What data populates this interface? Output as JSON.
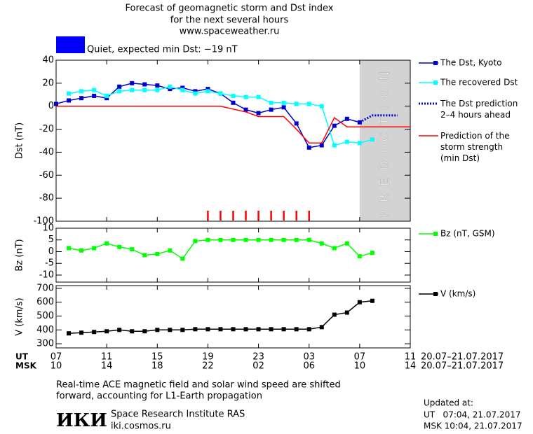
{
  "title_lines": [
    "Forecast of geomagnetic storm and Dst index",
    "for the next several hours",
    "www.spaceweather.ru"
  ],
  "status": {
    "color": "#0000ff",
    "text": "Quiet, expected min Dst: −19 nT"
  },
  "chart_data": [
    {
      "type": "line",
      "ylabel": "Dst (nT)",
      "xlim": [
        0,
        28
      ],
      "ylim": [
        -100,
        40
      ],
      "yticks": [
        40,
        20,
        0,
        -20,
        -40,
        -60,
        -80,
        -100
      ],
      "prediction_band": {
        "x": [
          24,
          28
        ],
        "label": "PREDICTION",
        "color": "#d3d3d3"
      },
      "storm_marks": {
        "color": "#ff0000",
        "x": [
          12,
          13,
          14,
          15,
          16,
          17,
          18,
          19,
          20
        ]
      },
      "series": [
        {
          "name": "The Dst, Kyoto",
          "color": "#0000cc",
          "marker": "square",
          "style": "solid",
          "x": [
            0,
            1,
            2,
            3,
            4,
            5,
            6,
            7,
            8,
            9,
            10,
            11,
            12,
            13,
            14,
            15,
            16,
            17,
            18,
            19,
            20,
            21,
            22,
            23,
            24
          ],
          "values": [
            2,
            5,
            7,
            9,
            7,
            17,
            20,
            19,
            18,
            15,
            16,
            13,
            15,
            11,
            3,
            -3,
            -6,
            -3,
            -1,
            -15,
            -36,
            -34,
            -17,
            -11,
            -14
          ]
        },
        {
          "name": "The recovered Dst",
          "color": "#00ffff",
          "marker": "square",
          "style": "solid",
          "x": [
            1,
            2,
            3,
            4,
            5,
            6,
            7,
            8,
            9,
            10,
            11,
            12,
            13,
            14,
            15,
            16,
            17,
            18,
            19,
            20,
            21,
            22,
            23,
            24,
            25
          ],
          "values": [
            11,
            13,
            14,
            9,
            13,
            14,
            14,
            14,
            17,
            14,
            11,
            13,
            11,
            9,
            8,
            8,
            3,
            3,
            2,
            2,
            0,
            -34,
            -31,
            -32,
            -29
          ]
        },
        {
          "name": "The Dst prediction\n2–4 hours ahead",
          "color": "#0000cc",
          "marker": "none",
          "style": "dotted",
          "x": [
            24,
            25,
            26,
            27
          ],
          "values": [
            -14,
            -8,
            -8,
            -8
          ]
        },
        {
          "name": "Prediction of the\nstorm strength\n(min Dst)",
          "color": "#ff0000",
          "marker": "none",
          "style": "solid",
          "x": [
            0,
            13,
            15,
            16,
            18,
            19,
            20,
            21,
            22,
            23,
            28
          ],
          "values": [
            0,
            0,
            -5,
            -9,
            -9,
            -20,
            -32,
            -32,
            -10,
            -18,
            -18
          ]
        }
      ]
    },
    {
      "type": "line",
      "ylabel": "Bz (nT)",
      "xlim": [
        0,
        28
      ],
      "ylim": [
        -13,
        10
      ],
      "yticks": [
        10,
        5,
        0,
        -5,
        -10
      ],
      "series": [
        {
          "name": "Bz (nT, GSM)",
          "color": "#00ff00",
          "marker": "square",
          "style": "solid",
          "x": [
            1,
            2,
            3,
            4,
            5,
            6,
            7,
            8,
            9,
            10,
            11,
            12,
            13,
            14,
            15,
            16,
            17,
            18,
            19,
            20,
            21,
            22,
            23,
            24,
            25
          ],
          "values": [
            1.5,
            0.5,
            1.5,
            3.5,
            2,
            1,
            -1.5,
            -1,
            0.5,
            -3,
            4.5,
            5,
            5,
            5,
            5,
            5,
            5,
            5,
            5,
            5,
            3.5,
            1.5,
            3.5,
            -2,
            -0.5
          ]
        }
      ]
    },
    {
      "type": "line",
      "ylabel": "V (km/s)",
      "xlim": [
        0,
        28
      ],
      "ylim": [
        270,
        720
      ],
      "yticks": [
        700,
        600,
        500,
        400,
        300
      ],
      "series": [
        {
          "name": "V (km/s)",
          "color": "#000000",
          "marker": "square",
          "style": "solid",
          "x": [
            1,
            2,
            3,
            4,
            5,
            6,
            7,
            8,
            9,
            10,
            11,
            12,
            13,
            14,
            15,
            16,
            17,
            18,
            19,
            20,
            21,
            22,
            23,
            24,
            25
          ],
          "values": [
            375,
            380,
            385,
            390,
            400,
            390,
            390,
            400,
            400,
            400,
            405,
            405,
            405,
            405,
            405,
            405,
            405,
            405,
            405,
            405,
            420,
            510,
            525,
            600,
            610
          ]
        }
      ]
    }
  ],
  "x_axis": {
    "ut_label": "UT",
    "msk_label": "MSK",
    "ut_ticks": [
      {
        "value": 0,
        "label": "07"
      },
      {
        "value": 4,
        "label": "11"
      },
      {
        "value": 8,
        "label": "15"
      },
      {
        "value": 12,
        "label": "19"
      },
      {
        "value": 16,
        "label": "23"
      },
      {
        "value": 20,
        "label": "03"
      },
      {
        "value": 24,
        "label": "07"
      },
      {
        "value": 28,
        "label": "11"
      }
    ],
    "msk_ticks": [
      {
        "value": 0,
        "label": "10"
      },
      {
        "value": 4,
        "label": "14"
      },
      {
        "value": 8,
        "label": "18"
      },
      {
        "value": 12,
        "label": "22"
      },
      {
        "value": 16,
        "label": "02"
      },
      {
        "value": 20,
        "label": "06"
      },
      {
        "value": 24,
        "label": "10"
      },
      {
        "value": 28,
        "label": "14"
      }
    ],
    "ut_range": "20.07–21.07.2017",
    "msk_range": "20.07–21.07.2017"
  },
  "notes": [
    "Real-time ACE magnetic field and solar wind speed are shifted",
    "forward, accounting for L1-Earth propagation"
  ],
  "footer": {
    "logo": "ИКИ",
    "institute": "Space Research Institute RAS",
    "site": "iki.cosmos.ru",
    "updated_label": "Updated at:",
    "updated_ut": "UT   07:04, 21.07.2017",
    "updated_msk": "MSK 10:04, 21.07.2017"
  }
}
